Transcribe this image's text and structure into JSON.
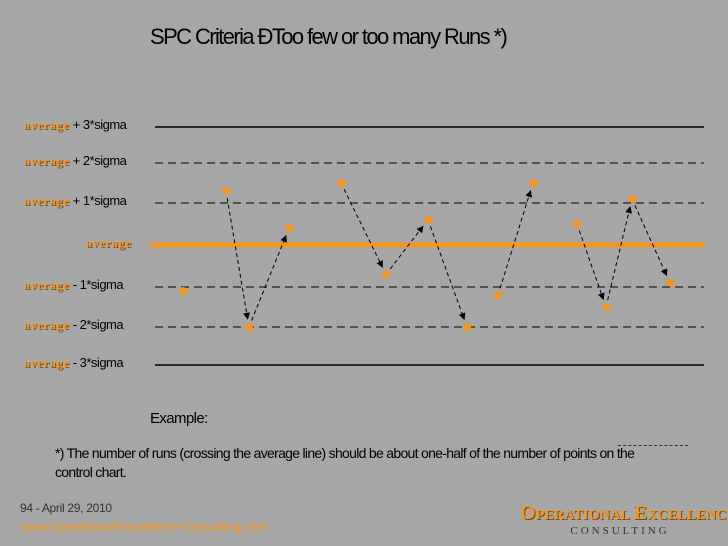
{
  "title": "SPC Criteria ÐToo few or too many Runs *)",
  "levels": [
    {
      "word": "average",
      "suffix": " + 3*sigma",
      "sigma": 3,
      "style": "solid"
    },
    {
      "word": "average",
      "suffix": " + 2*sigma",
      "sigma": 2,
      "style": "dashed"
    },
    {
      "word": "average",
      "suffix": " + 1*sigma",
      "sigma": 1,
      "style": "dashed"
    },
    {
      "word": "average",
      "suffix": "",
      "sigma": 0,
      "style": "center"
    },
    {
      "word": "average",
      "suffix": " - 1*sigma",
      "sigma": -1,
      "style": "dashed"
    },
    {
      "word": "average",
      "suffix": " - 2*sigma",
      "sigma": -2,
      "style": "dashed"
    },
    {
      "word": "average",
      "suffix": " - 3*sigma",
      "sigma": -3,
      "style": "solid"
    }
  ],
  "chart_data": {
    "type": "scatter",
    "title": "SPC Criteria ÐToo few or too many Runs *)",
    "xlabel": "",
    "ylabel": "",
    "ylim": [
      -3,
      3
    ],
    "x": [
      1,
      2,
      3,
      4,
      5,
      6,
      7,
      8,
      9,
      10,
      11,
      12,
      13,
      14
    ],
    "values": [
      -1.1,
      1.3,
      -2.0,
      0.4,
      1.5,
      -0.7,
      0.6,
      -2.0,
      -1.2,
      1.5,
      0.5,
      -1.5,
      1.1,
      -0.9
    ],
    "connected_pairs": [
      [
        2,
        3
      ],
      [
        3,
        4
      ],
      [
        5,
        6
      ],
      [
        6,
        7
      ],
      [
        7,
        8
      ],
      [
        9,
        10
      ],
      [
        11,
        12
      ],
      [
        12,
        13
      ],
      [
        13,
        14
      ]
    ],
    "colors": {
      "points": "#f7941d",
      "center_line": "#f7941d",
      "limit_lines": "#000000"
    }
  },
  "example_label": "Example:",
  "footnote": "*) The number of runs (crossing the average line) should be about one-half of the number of points on the control chart.",
  "footer": {
    "date": "94 - April 29, 2010",
    "url": "www.Operational-Excellence-Consulting.com"
  },
  "logo": {
    "word1_cap": "O",
    "word1_rest": "PERATIONAL",
    "word2_cap": "E",
    "word2_rest": "XCELLENCE",
    "sub": "CONSULTING"
  }
}
